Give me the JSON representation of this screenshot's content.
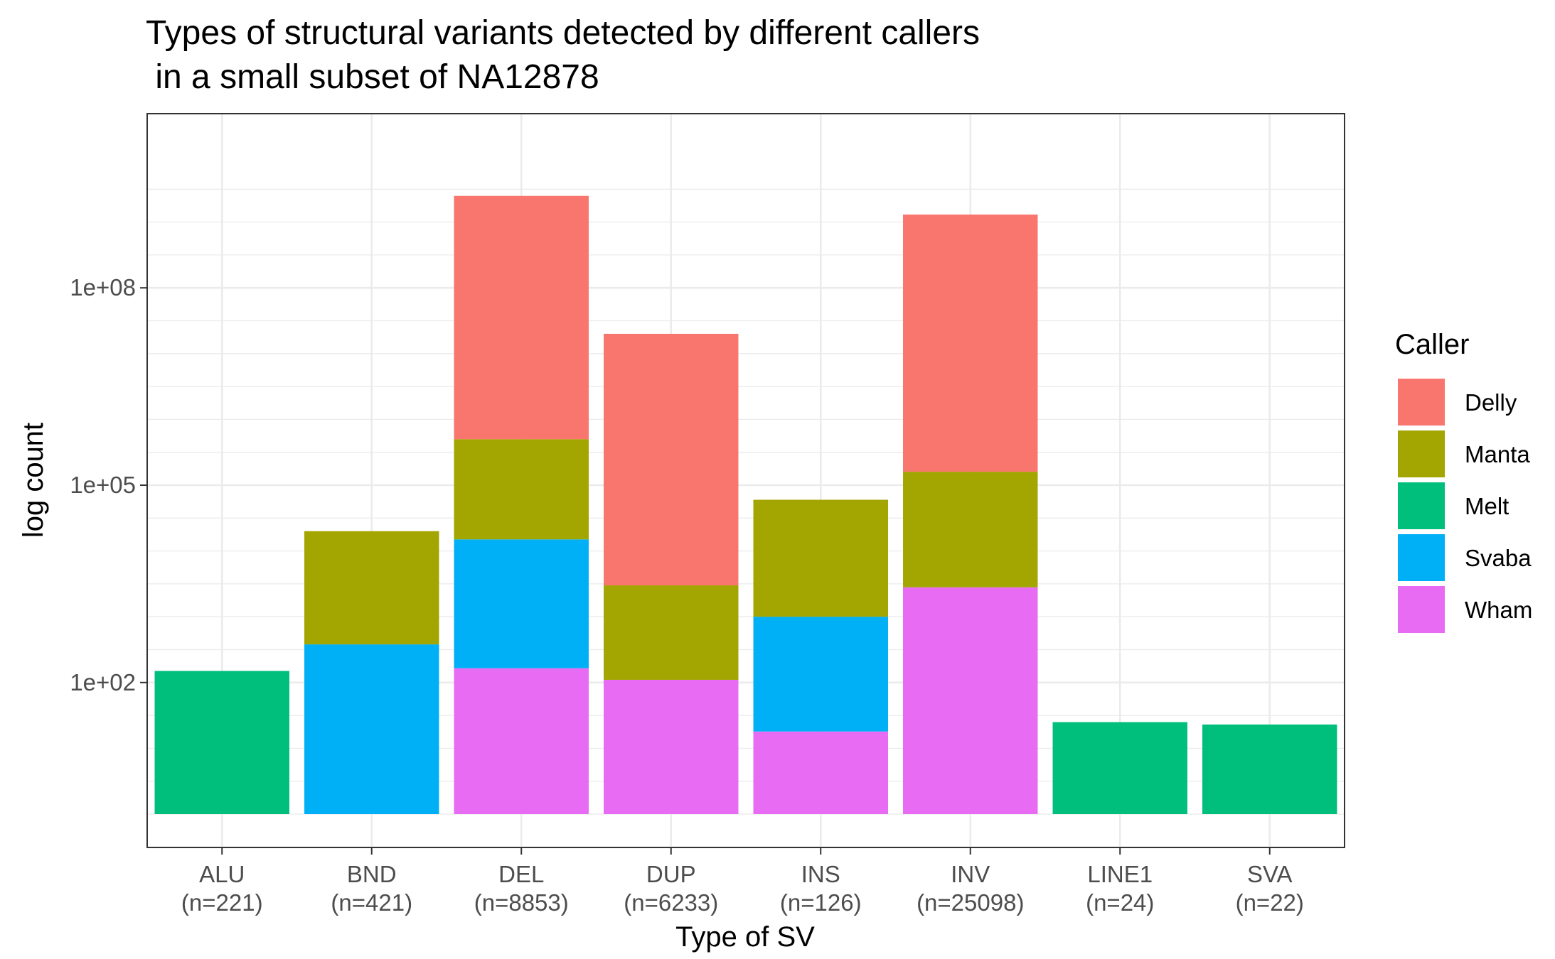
{
  "chart_data": {
    "type": "bar",
    "stacked": true,
    "title_line1": "Types of structural variants detected by different callers",
    "title_line2": " in a small subset of NA12878",
    "xlabel": "Type of SV",
    "ylabel": "log count",
    "y_scale": "log10",
    "y_ticks": [
      {
        "value": 100,
        "label": "1e+02"
      },
      {
        "value": 100000,
        "label": "1e+05"
      },
      {
        "value": 100000000,
        "label": "1e+08"
      }
    ],
    "categories": [
      {
        "name": "ALU",
        "n_label": "(n=221)"
      },
      {
        "name": "BND",
        "n_label": "(n=421)"
      },
      {
        "name": "DEL",
        "n_label": "(n=8853)"
      },
      {
        "name": "DUP",
        "n_label": "(n=6233)"
      },
      {
        "name": "INS",
        "n_label": "(n=126)"
      },
      {
        "name": "INV",
        "n_label": "(n=25098)"
      },
      {
        "name": "LINE1",
        "n_label": "(n=24)"
      },
      {
        "name": "SVA",
        "n_label": "(n=22)"
      }
    ],
    "legend_title": "Caller",
    "legend_position": "right",
    "grid": true,
    "series": [
      {
        "name": "Delly",
        "color": "#F8766D",
        "stack_top": [
          null,
          null,
          2500000000,
          20000000,
          null,
          1300000000,
          null,
          null
        ]
      },
      {
        "name": "Manta",
        "color": "#A3A500",
        "stack_top": [
          null,
          20000,
          500000,
          3000,
          60000,
          160000,
          null,
          null
        ]
      },
      {
        "name": "Melt",
        "color": "#00BF7D",
        "stack_top": [
          150,
          null,
          null,
          null,
          null,
          null,
          25,
          23
        ]
      },
      {
        "name": "Svaba",
        "color": "#00B0F6",
        "stack_top": [
          null,
          380,
          15000,
          null,
          1000,
          null,
          null,
          null
        ]
      },
      {
        "name": "Wham",
        "color": "#E76BF3",
        "stack_top": [
          null,
          null,
          165,
          110,
          18,
          2800,
          null,
          null
        ]
      }
    ],
    "stack_order_bottom_to_top": [
      "Wham",
      "Svaba",
      "Melt",
      "Manta",
      "Delly"
    ],
    "baseline": 1
  }
}
